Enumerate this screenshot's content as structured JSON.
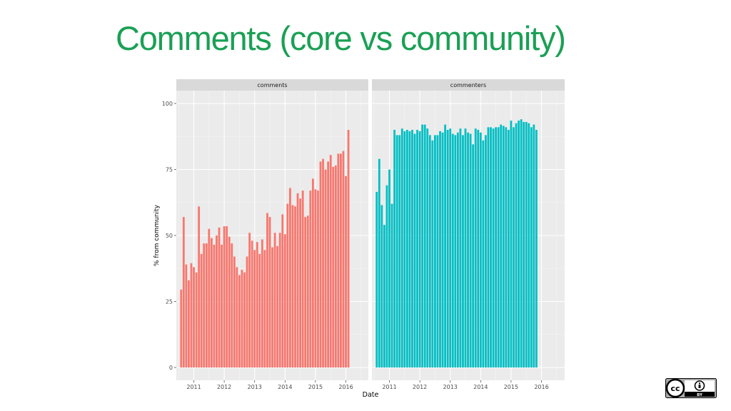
{
  "slide": {
    "title": "Comments (core vs community)",
    "title_color": "#1aa055"
  },
  "license_badge": {
    "text_cc": "cc",
    "text_by": "BY"
  },
  "chart_data": {
    "type": "bar",
    "ylabel": "% from community",
    "xlabel": "Date",
    "ylim": [
      0,
      100
    ],
    "yticks": [
      0,
      25,
      50,
      75,
      100
    ],
    "xticks": [
      "2011",
      "2012",
      "2013",
      "2014",
      "2015",
      "2016"
    ],
    "grid": true,
    "panels": [
      {
        "name": "comments",
        "color": "#f8766d",
        "start": "2010-08",
        "values": [
          29.5,
          57,
          39,
          33,
          39.5,
          38,
          36,
          61,
          43,
          47,
          47,
          52.5,
          49,
          46.5,
          50,
          53,
          46.5,
          53.5,
          53.5,
          49.5,
          47,
          42,
          38,
          35,
          37,
          36,
          42,
          51,
          48,
          44.5,
          47.5,
          43,
          48.5,
          44.5,
          58.5,
          57,
          45.5,
          51,
          46,
          51,
          58,
          50.5,
          62,
          68,
          61.5,
          61,
          66,
          64,
          67,
          57,
          57.5,
          67,
          71.5,
          67.5,
          67,
          78,
          79,
          75,
          78,
          80.5,
          76,
          76.5,
          81,
          81,
          82,
          72.5,
          90
        ]
      },
      {
        "name": "commenters",
        "color": "#00bfc4",
        "start": "2010-08",
        "values": [
          66.5,
          79,
          61.5,
          54,
          69,
          75,
          62,
          90,
          88,
          88,
          90.5,
          89.5,
          90,
          89.5,
          90,
          88.5,
          90,
          89.5,
          92,
          92,
          90.5,
          88,
          86,
          88,
          88,
          89.5,
          89,
          92,
          90,
          90.5,
          88.5,
          88,
          89,
          90.5,
          88,
          90.5,
          89,
          88.5,
          84.5,
          90.5,
          90,
          89,
          86,
          88,
          91,
          91,
          90.5,
          91,
          91,
          92,
          91.5,
          91,
          90,
          93.5,
          91,
          92.5,
          93.5,
          94,
          93,
          93,
          92.5,
          91,
          92,
          90
        ]
      }
    ]
  }
}
